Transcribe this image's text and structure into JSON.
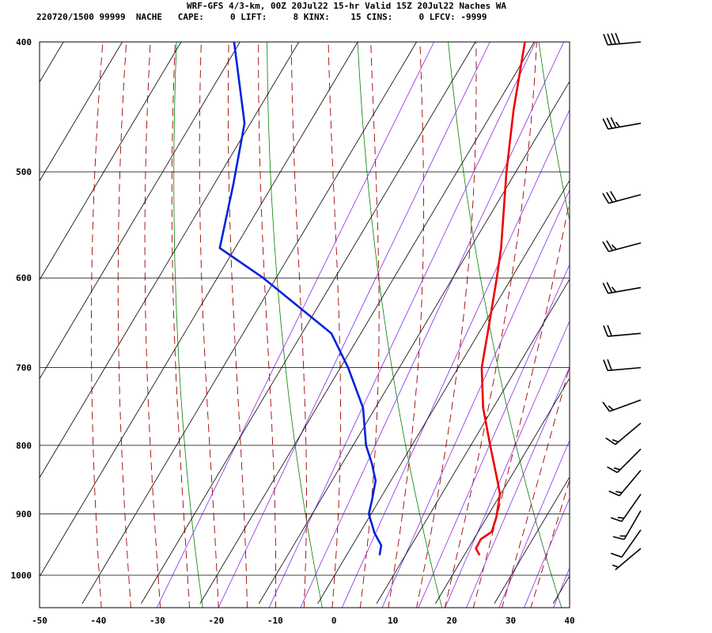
{
  "header": {
    "line1": "WRF-GFS 4/3-km, 00Z 20Jul22 15-hr Valid 15Z 20Jul22 Naches WA",
    "line2": "220720/1500 99999  NACHE   CAPE:     0 LIFT:     8 KINX:    15 CINS:     0 LFCV: -9999"
  },
  "chart_data": {
    "type": "line",
    "subtype": "skew-T log-P sounding",
    "title": "WRF-GFS 4/3-km, 00Z 20Jul22 15-hr Valid 15Z 20Jul22 Naches WA",
    "xlabel": "",
    "ylabel": "",
    "x_ticks": [
      -50,
      -40,
      -30,
      -20,
      -10,
      0,
      10,
      20,
      30,
      40
    ],
    "y_ticks": [
      400,
      500,
      600,
      700,
      800,
      900,
      1000
    ],
    "xlim": [
      -50,
      40
    ],
    "ylim": [
      1050,
      400
    ],
    "y_scale": "log",
    "grid": true,
    "background_lines": [
      "dry adiabats (green)",
      "moist adiabats (dashed dark red)",
      "mixing ratio lines (purple)"
    ],
    "colors": {
      "temperature": "#ee0000",
      "dewpoint": "#0022dd",
      "isotherm_grid": "#000000",
      "dry_adiabat": "#008000",
      "moist_adiabat": "#a00000",
      "mixing_ratio": "#8a2be2"
    },
    "series": [
      {
        "key": "temperature",
        "color": "#ee0000",
        "points": [
          {
            "p": 966,
            "t": 22.6
          },
          {
            "p": 955,
            "t": 21.3
          },
          {
            "p": 940,
            "t": 21.2
          },
          {
            "p": 928,
            "t": 22.3
          },
          {
            "p": 905,
            "t": 21.6
          },
          {
            "p": 870,
            "t": 19.9
          },
          {
            "p": 850,
            "t": 18.1
          },
          {
            "p": 800,
            "t": 13.3
          },
          {
            "p": 750,
            "t": 8.3
          },
          {
            "p": 700,
            "t": 4.0
          },
          {
            "p": 650,
            "t": 0.9
          },
          {
            "p": 600,
            "t": -2.5
          },
          {
            "p": 570,
            "t": -4.8
          },
          {
            "p": 500,
            "t": -11.6
          },
          {
            "p": 450,
            "t": -16.6
          },
          {
            "p": 400,
            "t": -21.6
          }
        ]
      },
      {
        "key": "dewpoint",
        "color": "#0022dd",
        "points": [
          {
            "p": 966,
            "t": 5.6
          },
          {
            "p": 950,
            "t": 4.9
          },
          {
            "p": 930,
            "t": 2.5
          },
          {
            "p": 900,
            "t": -0.4
          },
          {
            "p": 880,
            "t": -1.2
          },
          {
            "p": 850,
            "t": -2.6
          },
          {
            "p": 825,
            "t": -5.0
          },
          {
            "p": 800,
            "t": -7.8
          },
          {
            "p": 750,
            "t": -12.1
          },
          {
            "p": 700,
            "t": -18.7
          },
          {
            "p": 660,
            "t": -25.0
          },
          {
            "p": 600,
            "t": -42.2
          },
          {
            "p": 570,
            "t": -52.6
          },
          {
            "p": 510,
            "t": -56.8
          },
          {
            "p": 460,
            "t": -61.0
          },
          {
            "p": 400,
            "t": -71.0
          }
        ]
      }
    ],
    "wind_barbs": [
      {
        "p": 400,
        "dir": 265,
        "kt": 40
      },
      {
        "p": 460,
        "dir": 260,
        "kt": 35
      },
      {
        "p": 520,
        "dir": 255,
        "kt": 30
      },
      {
        "p": 565,
        "dir": 255,
        "kt": 25
      },
      {
        "p": 610,
        "dir": 260,
        "kt": 25
      },
      {
        "p": 660,
        "dir": 265,
        "kt": 20
      },
      {
        "p": 700,
        "dir": 265,
        "kt": 20
      },
      {
        "p": 740,
        "dir": 250,
        "kt": 15
      },
      {
        "p": 770,
        "dir": 230,
        "kt": 15
      },
      {
        "p": 805,
        "dir": 225,
        "kt": 15
      },
      {
        "p": 835,
        "dir": 220,
        "kt": 15
      },
      {
        "p": 870,
        "dir": 215,
        "kt": 15
      },
      {
        "p": 895,
        "dir": 210,
        "kt": 15
      },
      {
        "p": 925,
        "dir": 215,
        "kt": 10
      },
      {
        "p": 955,
        "dir": 230,
        "kt": 5
      }
    ]
  }
}
